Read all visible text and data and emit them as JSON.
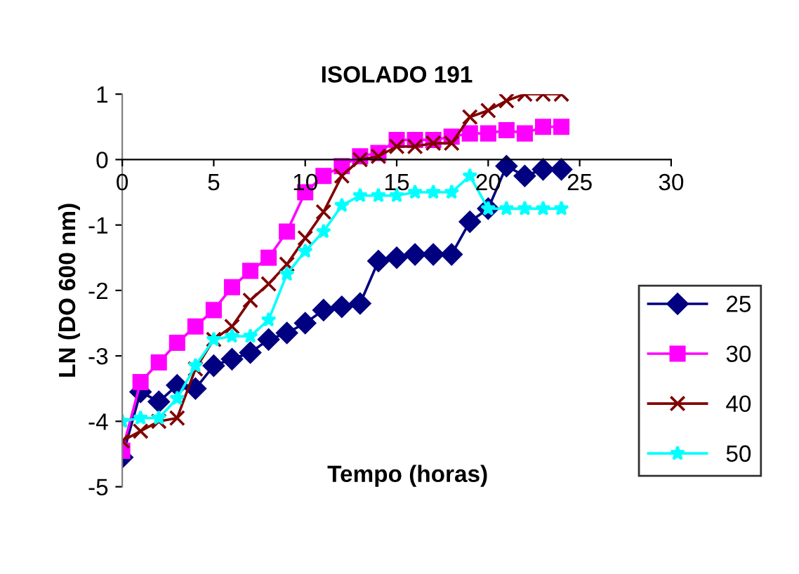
{
  "chart_data": {
    "type": "line",
    "title": "ISOLADO 191",
    "xlabel": "Tempo (horas)",
    "ylabel": "LN (DO 600 nm)",
    "x": [
      0,
      1,
      2,
      3,
      4,
      5,
      6,
      7,
      8,
      9,
      10,
      11,
      12,
      13,
      14,
      15,
      16,
      17,
      18,
      19,
      20,
      21,
      22,
      23,
      24
    ],
    "series": [
      {
        "name": "25",
        "color": "#000080",
        "marker": "diamond",
        "values": [
          -4.55,
          -3.55,
          -3.7,
          -3.45,
          -3.5,
          -3.15,
          -3.05,
          -2.95,
          -2.75,
          -2.65,
          -2.5,
          -2.3,
          -2.25,
          -2.2,
          -1.55,
          -1.5,
          -1.45,
          -1.45,
          -1.45,
          -0.95,
          -0.75,
          -0.1,
          -0.25,
          -0.15,
          -0.15
        ]
      },
      {
        "name": "30",
        "color": "#ff00ff",
        "marker": "square",
        "values": [
          -4.45,
          -3.4,
          -3.1,
          -2.8,
          -2.55,
          -2.3,
          -1.95,
          -1.7,
          -1.5,
          -1.1,
          -0.5,
          -0.25,
          -0.1,
          0.05,
          0.1,
          0.3,
          0.3,
          0.3,
          0.35,
          0.4,
          0.4,
          0.45,
          0.4,
          0.5,
          0.5
        ]
      },
      {
        "name": "40",
        "color": "#800000",
        "marker": "cross",
        "values": [
          -4.3,
          -4.15,
          -4.0,
          -3.95,
          -3.2,
          -2.75,
          -2.55,
          -2.15,
          -1.9,
          -1.6,
          -1.2,
          -0.8,
          -0.25,
          0.0,
          0.05,
          0.2,
          0.2,
          0.25,
          0.25,
          0.65,
          0.75,
          0.9,
          1.0,
          1.0,
          1.0
        ]
      },
      {
        "name": "50",
        "color": "#00ffff",
        "marker": "star",
        "values": [
          -4.0,
          -3.95,
          -3.95,
          -3.65,
          -3.15,
          -2.75,
          -2.7,
          -2.7,
          -2.45,
          -1.75,
          -1.4,
          -1.1,
          -0.7,
          -0.55,
          -0.55,
          -0.55,
          -0.5,
          -0.5,
          -0.5,
          -0.25,
          -0.75,
          -0.75,
          -0.75,
          -0.75,
          -0.75
        ]
      }
    ],
    "xlim": [
      0,
      30
    ],
    "xticks": [
      0,
      5,
      10,
      15,
      20,
      25,
      30
    ],
    "ylim": [
      -5,
      1
    ],
    "yticks": [
      -5,
      -4,
      -3,
      -2,
      -1,
      0,
      1
    ],
    "legend": "right",
    "grid": false
  }
}
